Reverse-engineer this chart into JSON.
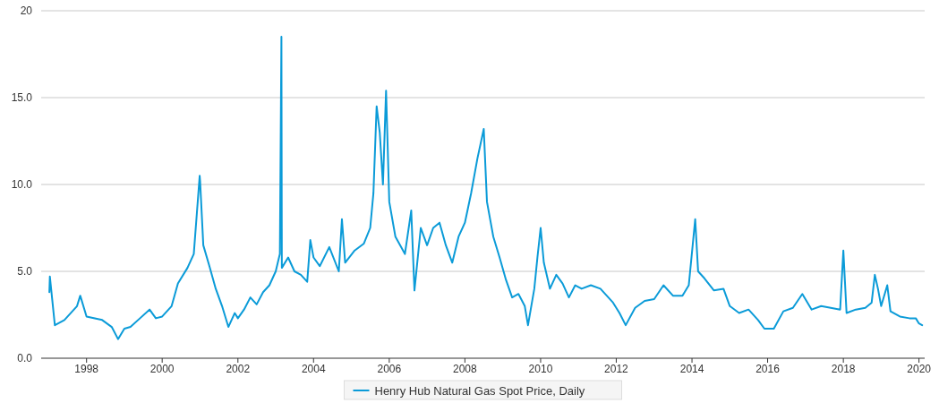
{
  "chart_data": {
    "type": "line",
    "legend": "bottom",
    "grid": "y",
    "xlim": [
      "1996-10-20",
      "2020-02-25"
    ],
    "ylim": [
      0,
      20
    ],
    "yticks": [
      {
        "value": 0,
        "label": "0.0"
      },
      {
        "value": 5,
        "label": "5.0"
      },
      {
        "value": 10,
        "label": "10.0"
      },
      {
        "value": 15,
        "label": "15.0"
      },
      20
    ],
    "xticks": [
      {
        "value": "1998",
        "label": "1998"
      },
      {
        "value": "2000",
        "label": "2000"
      },
      {
        "value": "2002",
        "label": "2002"
      },
      {
        "value": "2004",
        "label": "2004"
      },
      {
        "value": "2006",
        "label": "2006"
      },
      {
        "value": "2008",
        "label": "2008"
      },
      {
        "value": "2010",
        "label": "2010"
      },
      {
        "value": "2012",
        "label": "2012"
      },
      {
        "value": "2014",
        "label": "2014"
      },
      {
        "value": "2016",
        "label": "2016"
      },
      {
        "value": "2018",
        "label": "2018"
      },
      {
        "value": "2020",
        "label": "2020"
      }
    ],
    "x": [
      "1997-01-07",
      "1997-01-12",
      "1997-03",
      "1997-06",
      "1997-10",
      "1997-11",
      "1998-01",
      "1998-06",
      "1998-09",
      "1998-11",
      "1999-01",
      "1999-03",
      "1999-06",
      "1999-09",
      "1999-11",
      "2000-01",
      "2000-04",
      "2000-06",
      "2000-09",
      "2000-11",
      "2000-12-28",
      "2001-01",
      "2001-02",
      "2001-04",
      "2001-06",
      "2001-08",
      "2001-10",
      "2001-12",
      "2002-01",
      "2002-03",
      "2002-05",
      "2002-07",
      "2002-09",
      "2002-11",
      "2003-01",
      "2003-02-10",
      "2003-02-25",
      "2003-03",
      "2003-05",
      "2003-07",
      "2003-09",
      "2003-11",
      "2003-12",
      "2004-01",
      "2004-03",
      "2004-06",
      "2004-09",
      "2004-10",
      "2004-11",
      "2005-02",
      "2005-05",
      "2005-07",
      "2005-08",
      "2005-09",
      "2005-10",
      "2005-11",
      "2005-12",
      "2006-01",
      "2006-03",
      "2006-06",
      "2006-08",
      "2006-09",
      "2006-11",
      "2007-01",
      "2007-03",
      "2007-05",
      "2007-07",
      "2007-09",
      "2007-11",
      "2008-01",
      "2008-03",
      "2008-05",
      "2008-07",
      "2008-08",
      "2008-10",
      "2008-12",
      "2009-02",
      "2009-04",
      "2009-06",
      "2009-08",
      "2009-09",
      "2009-11",
      "2009-12",
      "2010-01",
      "2010-02",
      "2010-04",
      "2010-06",
      "2010-08",
      "2010-10",
      "2010-12",
      "2011-02",
      "2011-05",
      "2011-08",
      "2011-10",
      "2011-12",
      "2012-02",
      "2012-04",
      "2012-07",
      "2012-10",
      "2013-01",
      "2013-04",
      "2013-07",
      "2013-10",
      "2013-12",
      "2014-02",
      "2014-03",
      "2014-05",
      "2014-08",
      "2014-11",
      "2015-01",
      "2015-04",
      "2015-07",
      "2015-10",
      "2015-12",
      "2016-03",
      "2016-06",
      "2016-09",
      "2016-12",
      "2017-03",
      "2017-06",
      "2017-09",
      "2017-12",
      "2018-01",
      "2018-02",
      "2018-05",
      "2018-08",
      "2018-10",
      "2018-11",
      "2018-12",
      "2019-01",
      "2019-03",
      "2019-04",
      "2019-07",
      "2019-10",
      "2019-12",
      "2020-01",
      "2020-02"
    ],
    "series": [
      {
        "name": "Henry Hub Natural Gas Spot Price, Daily",
        "color": "#0b9bd8",
        "values": [
          3.8,
          4.7,
          1.9,
          2.2,
          3.0,
          3.6,
          2.4,
          2.2,
          1.8,
          1.1,
          1.7,
          1.8,
          2.3,
          2.8,
          2.3,
          2.4,
          3.0,
          4.3,
          5.2,
          6.0,
          10.5,
          10.2,
          6.5,
          5.3,
          4.0,
          3.0,
          1.8,
          2.6,
          2.3,
          2.8,
          3.5,
          3.1,
          3.8,
          4.2,
          5.0,
          6.0,
          18.5,
          5.2,
          5.8,
          5.0,
          4.8,
          4.4,
          6.8,
          5.8,
          5.3,
          6.4,
          5.0,
          8.0,
          5.5,
          6.2,
          6.6,
          7.5,
          9.5,
          14.5,
          13.0,
          10.0,
          15.4,
          9.0,
          7.0,
          6.0,
          8.5,
          3.9,
          7.5,
          6.5,
          7.5,
          7.8,
          6.5,
          5.5,
          7.0,
          7.8,
          9.5,
          11.5,
          13.2,
          9.0,
          7.0,
          5.8,
          4.5,
          3.5,
          3.7,
          3.0,
          1.9,
          4.0,
          5.8,
          7.5,
          5.5,
          4.0,
          4.8,
          4.3,
          3.5,
          4.2,
          4.0,
          4.2,
          4.0,
          3.6,
          3.2,
          2.6,
          1.9,
          2.9,
          3.3,
          3.4,
          4.2,
          3.6,
          3.6,
          4.2,
          8.0,
          5.0,
          4.6,
          3.9,
          4.0,
          3.0,
          2.6,
          2.8,
          2.2,
          1.7,
          1.7,
          2.7,
          2.9,
          3.7,
          2.8,
          3.0,
          2.9,
          2.8,
          6.2,
          2.6,
          2.8,
          2.9,
          3.2,
          4.8,
          4.0,
          3.0,
          4.2,
          2.7,
          2.4,
          2.3,
          2.3,
          2.0,
          1.9
        ]
      }
    ]
  }
}
